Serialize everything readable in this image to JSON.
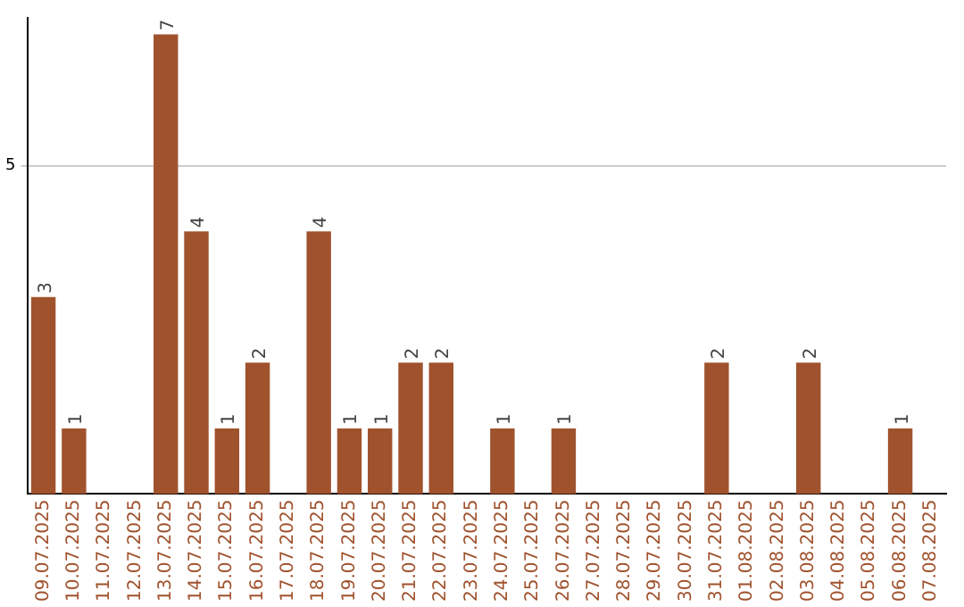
{
  "chart_data": {
    "type": "bar",
    "categories": [
      "09.07.2025",
      "10.07.2025",
      "11.07.2025",
      "12.07.2025",
      "13.07.2025",
      "14.07.2025",
      "15.07.2025",
      "16.07.2025",
      "17.07.2025",
      "18.07.2025",
      "19.07.2025",
      "20.07.2025",
      "21.07.2025",
      "22.07.2025",
      "23.07.2025",
      "24.07.2025",
      "25.07.2025",
      "26.07.2025",
      "27.07.2025",
      "28.07.2025",
      "29.07.2025",
      "30.07.2025",
      "31.07.2025",
      "01.08.2025",
      "02.08.2025",
      "03.08.2025",
      "04.08.2025",
      "05.08.2025",
      "06.08.2025",
      "07.08.2025"
    ],
    "values": [
      3,
      1,
      0,
      0,
      7,
      4,
      1,
      2,
      0,
      4,
      1,
      1,
      2,
      2,
      0,
      1,
      0,
      1,
      0,
      0,
      0,
      0,
      2,
      0,
      0,
      2,
      0,
      0,
      1,
      0
    ],
    "value_labels": [
      "3",
      "1",
      null,
      null,
      "7",
      "4",
      "1",
      "2",
      null,
      "4",
      "1",
      "1",
      "2",
      "2",
      null,
      "1",
      null,
      "1",
      null,
      null,
      null,
      null,
      "2",
      null,
      null,
      "2",
      null,
      null,
      "1",
      null
    ],
    "color": "#a0522d",
    "ylim": [
      0,
      7.25
    ],
    "yticks": [
      5
    ],
    "grid": "y",
    "legend": false
  }
}
